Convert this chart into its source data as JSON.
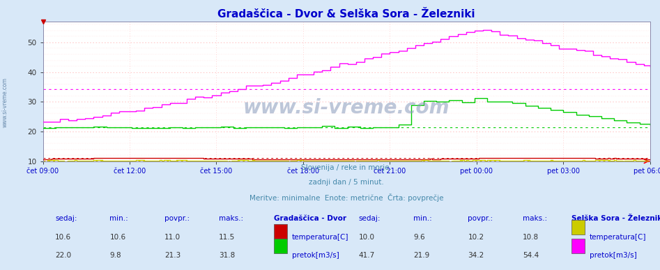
{
  "title": "Gradaščica - Dvor & Selška Sora - Železniki",
  "title_color": "#0000cc",
  "background_color": "#d8e8f8",
  "plot_bg_color": "#ffffff",
  "ylim": [
    10,
    57
  ],
  "yticks": [
    10,
    20,
    30,
    40,
    50
  ],
  "xtick_labels": [
    "čet 09:00",
    "čet 12:00",
    "čet 15:00",
    "čet 18:00",
    "čet 21:00",
    "pet 00:00",
    "pet 03:00",
    "pet 06:00"
  ],
  "n_points": 288,
  "subtitle1": "Slovenija / reke in morje.",
  "subtitle2": "zadnji dan / 5 minut.",
  "subtitle3": "Meritve: minimalne  Enote: metrične  Črta: povprečje",
  "subtitle_color": "#4488aa",
  "watermark": "www.si-vreme.com",
  "station1_name": "Gradaščica - Dvor",
  "station1_temp_color": "#cc0000",
  "station1_flow_color": "#00cc00",
  "station1_sedaj_temp": 10.6,
  "station1_min_temp": 10.6,
  "station1_povpr_temp": 11.0,
  "station1_maks_temp": 11.5,
  "station1_sedaj_flow": 22.0,
  "station1_min_flow": 9.8,
  "station1_povpr_flow": 21.3,
  "station1_maks_flow": 31.8,
  "station2_name": "Selška Sora - Železniki",
  "station2_temp_color": "#cccc00",
  "station2_flow_color": "#ff00ff",
  "station2_sedaj_temp": 10.0,
  "station2_min_temp": 9.6,
  "station2_povpr_temp": 10.2,
  "station2_maks_temp": 10.8,
  "station2_sedaj_flow": 41.7,
  "station2_min_flow": 21.9,
  "station2_povpr_flow": 34.2,
  "station2_maks_flow": 54.4,
  "label_sedaj": "sedaj:",
  "label_min": "min.:",
  "label_povpr": "povpr.:",
  "label_maks": "maks.:",
  "label_temp": "temperatura[C]",
  "label_flow": "pretok[m3/s]",
  "label_color": "#0000cc",
  "val_color": "#333333",
  "sidebar_text": "www.si-vreme.com",
  "sidebar_color": "#6688aa"
}
